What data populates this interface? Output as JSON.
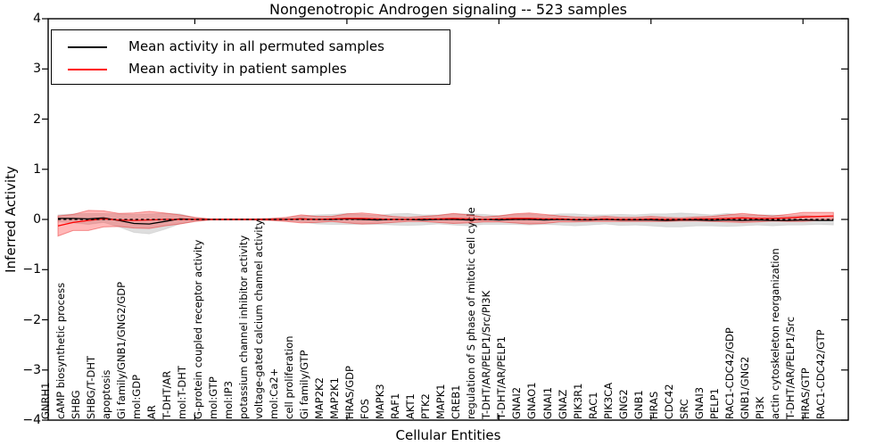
{
  "figure": {
    "title": "Nongenotropic Androgen signaling -- 523 samples",
    "xlabel": "Cellular Entities",
    "ylabel": "Inferred Activity"
  },
  "legend": {
    "items": [
      {
        "label": "Mean activity in all permuted samples",
        "color": "#000000"
      },
      {
        "label": "Mean activity in patient samples",
        "color": "#ff0000"
      }
    ]
  },
  "chart_data": {
    "type": "line",
    "title": "Nongenotropic Androgen signaling -- 523 samples",
    "xlabel": "Cellular Entities",
    "ylabel": "Inferred Activity",
    "ylim": [
      -4,
      4
    ],
    "yticks": [
      {
        "value": 4,
        "label": "4"
      },
      {
        "value": 3,
        "label": "3"
      },
      {
        "value": 2,
        "label": "2"
      },
      {
        "value": 1,
        "label": "1"
      },
      {
        "value": 0,
        "label": "0"
      },
      {
        "value": -1,
        "label": "−1"
      },
      {
        "value": -2,
        "label": "−2"
      },
      {
        "value": -3,
        "label": "−3"
      },
      {
        "value": -4,
        "label": "−4"
      }
    ],
    "x_major_tick_indices": [
      9,
      19,
      29,
      39,
      49
    ],
    "grid": false,
    "legend_position": "upper left",
    "categories": [
      "GNRH1",
      "cAMP biosynthetic process",
      "SHBG",
      "SHBG/T-DHT",
      "apoptosis",
      "Gi family/GNB1/GNG2/GDP",
      "mol:GDP",
      "AR",
      "T-DHT/AR",
      "mol:T-DHT",
      "G-protein coupled receptor activity",
      "mol:GTP",
      "mol:IP3",
      "potassium channel inhibitor activity",
      "voltage-gated calcium channel activity",
      "mol:Ca2+",
      "cell proliferation",
      "Gi family/GTP",
      "MAP2K2",
      "MAP2K1",
      "HRAS/GDP",
      "FOS",
      "MAPK3",
      "RAF1",
      "AKT1",
      "PTK2",
      "MAPK1",
      "CREB1",
      "regulation of S phase of mitotic cell cycle",
      "T-DHT/AR/PELP1/Src/PI3K",
      "T-DHT/AR/PELP1",
      "GNAI2",
      "GNAO1",
      "GNAI1",
      "GNAZ",
      "PIK3R1",
      "RAC1",
      "PIK3CA",
      "GNG2",
      "GNB1",
      "HRAS",
      "CDC42",
      "SRC",
      "GNAI3",
      "PELP1",
      "RAC1-CDC42/GDP",
      "GNB1/GNG2",
      "PI3K",
      "actin cytoskeleton reorganization",
      "T-DHT/AR/PELP1/Src",
      "HRAS/GTP",
      "RAC1-CDC42/GTP"
    ],
    "series": [
      {
        "name": "Mean activity in all permuted samples",
        "color": "#000000",
        "line_style": "solid",
        "band_color": "rgba(0,0,0,0.13)",
        "values": [
          0.02,
          0.02,
          0.01,
          0.03,
          -0.02,
          -0.08,
          -0.09,
          -0.04,
          0.01,
          0.0,
          0.0,
          0.0,
          0.0,
          0.0,
          0.0,
          0.0,
          0.01,
          0.0,
          0.0,
          0.01,
          0.0,
          -0.01,
          0.0,
          0.0,
          -0.01,
          0.0,
          0.0,
          -0.01,
          0.0,
          -0.01,
          0.0,
          0.0,
          -0.01,
          0.0,
          -0.01,
          -0.01,
          0.0,
          -0.01,
          -0.01,
          -0.01,
          -0.02,
          -0.01,
          -0.01,
          -0.02,
          -0.01,
          -0.02,
          -0.01,
          -0.02,
          -0.02,
          -0.01,
          -0.02,
          -0.02
        ],
        "band_halfwidth": [
          0.07,
          0.09,
          0.11,
          0.09,
          0.13,
          0.18,
          0.2,
          0.16,
          0.1,
          0.04,
          0.01,
          0.01,
          0.01,
          0.01,
          0.02,
          0.03,
          0.06,
          0.09,
          0.1,
          0.11,
          0.1,
          0.09,
          0.11,
          0.12,
          0.1,
          0.09,
          0.11,
          0.12,
          0.1,
          0.09,
          0.1,
          0.11,
          0.09,
          0.11,
          0.12,
          0.1,
          0.09,
          0.11,
          0.1,
          0.12,
          0.13,
          0.14,
          0.12,
          0.11,
          0.13,
          0.11,
          0.1,
          0.11,
          0.09,
          0.1,
          0.08,
          0.09
        ]
      },
      {
        "name": "Mean activity in patient samples",
        "color": "#ff0000",
        "line_style": "solid",
        "band_color": "rgba(255,40,40,0.33)",
        "values": [
          -0.13,
          -0.06,
          -0.02,
          0.01,
          -0.01,
          -0.02,
          -0.01,
          0.0,
          0.0,
          0.0,
          0.0,
          0.0,
          0.0,
          0.0,
          0.0,
          0.0,
          0.01,
          0.0,
          0.01,
          0.02,
          0.02,
          0.01,
          0.0,
          0.0,
          0.01,
          0.01,
          0.02,
          0.01,
          0.0,
          0.01,
          0.02,
          0.02,
          0.01,
          0.01,
          0.0,
          0.0,
          0.01,
          0.0,
          0.0,
          0.01,
          0.0,
          0.0,
          0.01,
          0.01,
          0.02,
          0.03,
          0.02,
          0.02,
          0.03,
          0.05,
          0.06,
          0.07
        ],
        "band_halfwidth": [
          0.2,
          0.16,
          0.2,
          0.16,
          0.13,
          0.15,
          0.17,
          0.13,
          0.09,
          0.04,
          0.01,
          0.01,
          0.01,
          0.01,
          0.02,
          0.04,
          0.08,
          0.06,
          0.05,
          0.09,
          0.11,
          0.09,
          0.06,
          0.04,
          0.05,
          0.07,
          0.1,
          0.08,
          0.05,
          0.06,
          0.09,
          0.11,
          0.09,
          0.06,
          0.05,
          0.04,
          0.05,
          0.04,
          0.04,
          0.05,
          0.04,
          0.03,
          0.04,
          0.05,
          0.07,
          0.09,
          0.07,
          0.05,
          0.07,
          0.09,
          0.08,
          0.07
        ]
      }
    ],
    "zero_line": {
      "value": 0,
      "style": "dashed",
      "color": "#000000"
    }
  }
}
